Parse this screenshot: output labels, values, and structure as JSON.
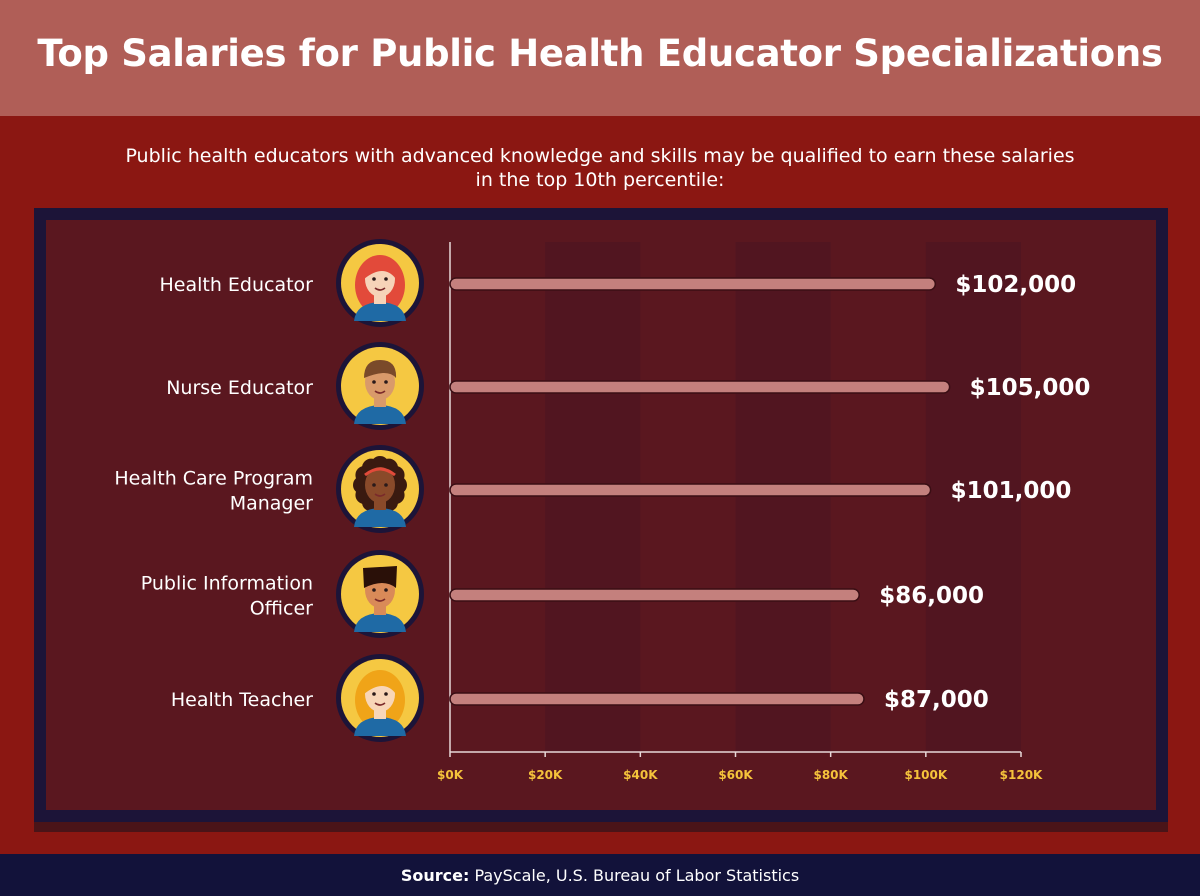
{
  "title": "Top Salaries for Public Health Educator Specializations",
  "subtitle_line1": "Public health educators with advanced knowledge and skills may be qualified to earn these salaries",
  "subtitle_line2": "in the top 10th percentile:",
  "source_label": "Source:",
  "source_text": "PayScale, U.S. Bureau of Labor Statistics",
  "colors": {
    "background": "#8b1712",
    "header": "#b05e57",
    "panel": "#5a171f",
    "panel_border": "#1c1438",
    "bar": "#c4807d",
    "axis_label": "#f5c33b",
    "footer": "#12123a"
  },
  "chart_data": {
    "type": "bar",
    "orientation": "horizontal",
    "categories": [
      [
        "Health Educator"
      ],
      [
        "Nurse Educator"
      ],
      [
        "Health Care Program",
        "Manager"
      ],
      [
        "Public Information",
        "Officer"
      ],
      [
        "Health Teacher"
      ]
    ],
    "avatars": [
      "woman-red-hair-icon",
      "man-brown-hair-icon",
      "woman-curly-hair-icon",
      "man-black-hair-icon",
      "woman-blonde-hair-icon"
    ],
    "values": [
      102000,
      105000,
      101000,
      86000,
      87000
    ],
    "value_labels": [
      "$102,000",
      "$105,000",
      "$101,000",
      "$86,000",
      "$87,000"
    ],
    "xlim": [
      0,
      120000
    ],
    "xticks": [
      0,
      20000,
      40000,
      60000,
      80000,
      100000,
      120000
    ],
    "xtick_labels": [
      "$0K",
      "$20K",
      "$40K",
      "$60K",
      "$80K",
      "$100K",
      "$120K"
    ],
    "grid": "alternating-bands",
    "legend": "none"
  }
}
